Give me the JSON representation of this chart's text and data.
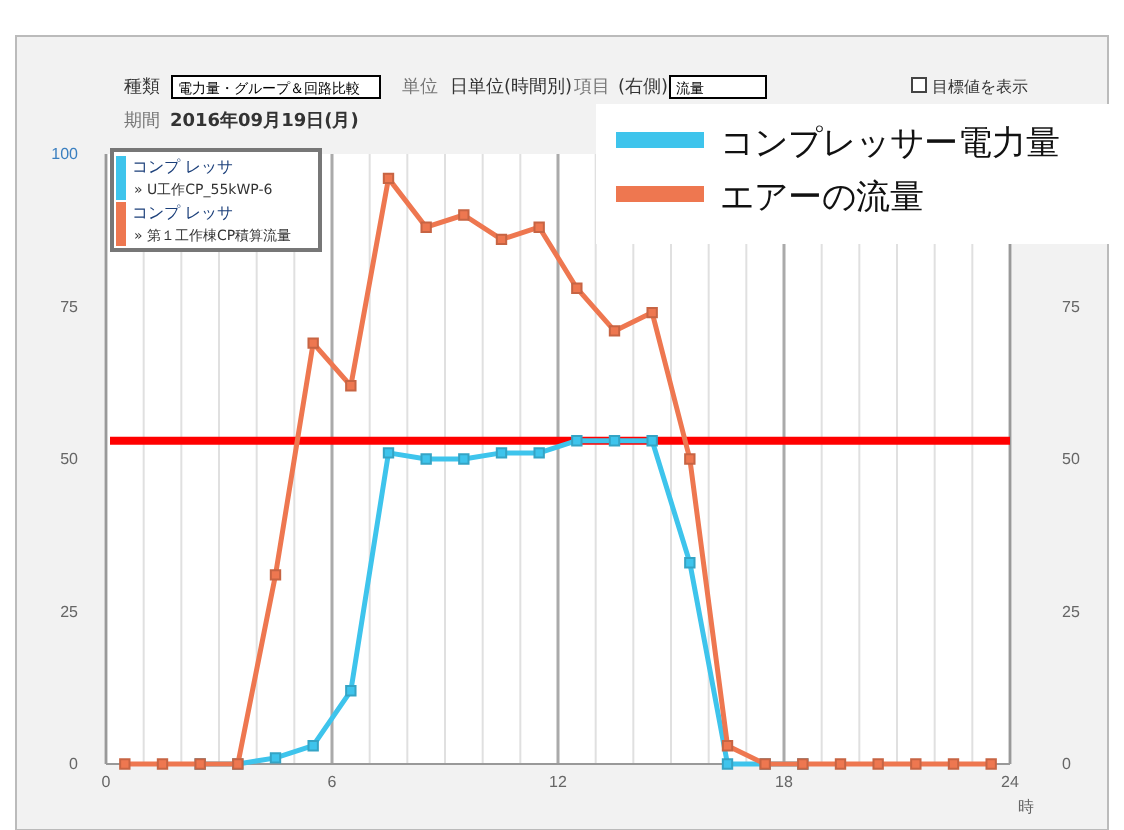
{
  "chart_data": {
    "type": "line",
    "x": [
      0.5,
      1.5,
      2.5,
      3.5,
      4.5,
      5.5,
      6.5,
      7.5,
      8.5,
      9.5,
      10.5,
      11.5,
      12.5,
      13.5,
      14.5,
      15.5,
      16.5,
      17.5,
      18.5,
      19.5,
      20.5,
      21.5,
      22.5,
      23.5
    ],
    "series": [
      {
        "name": "コンプレッサー電力量",
        "color": "#3ec4ec",
        "values": [
          null,
          null,
          0,
          0,
          1,
          3,
          12,
          51,
          50,
          50,
          51,
          51,
          53,
          53,
          53,
          33,
          0,
          0,
          0,
          null,
          null,
          null,
          null,
          null
        ]
      },
      {
        "name": "エアーの流量",
        "color": "#ee7750",
        "values": [
          0,
          0,
          0,
          0,
          31,
          69,
          62,
          96,
          88,
          90,
          86,
          88,
          78,
          71,
          74,
          50,
          3,
          0,
          0,
          0,
          0,
          0,
          0,
          0
        ]
      }
    ],
    "xlim": [
      0,
      24
    ],
    "xticks": [
      0,
      {
        "value": 1,
        "label": null
      },
      {
        "value": 2,
        "label": null
      },
      {
        "value": 3,
        "label": null
      },
      {
        "value": 4,
        "label": null
      },
      {
        "value": 5,
        "label": null
      },
      6,
      {
        "value": 7,
        "label": null
      },
      {
        "value": 8,
        "label": null
      },
      {
        "value": 9,
        "label": null
      },
      {
        "value": 10,
        "label": null
      },
      {
        "value": 11,
        "label": null
      },
      12,
      {
        "value": 13,
        "label": null
      },
      {
        "value": 14,
        "label": null
      },
      {
        "value": 15,
        "label": null
      },
      {
        "value": 16,
        "label": null
      },
      {
        "value": 17,
        "label": null
      },
      18,
      {
        "value": 19,
        "label": null
      },
      {
        "value": 20,
        "label": null
      },
      {
        "value": 21,
        "label": null
      },
      {
        "value": 22,
        "label": null
      },
      {
        "value": 23,
        "label": null
      },
      24
    ],
    "ylim": [
      0,
      100
    ],
    "yticks": [
      0,
      25,
      50,
      75,
      100
    ],
    "y2lim": [
      0,
      100
    ],
    "y2ticks": [
      0,
      25,
      50,
      75
    ],
    "xlabel": "時",
    "ref_lines": [
      {
        "axis": "y",
        "value": 53,
        "color": "#ff0000"
      }
    ],
    "grid": "x",
    "marker": "square",
    "line_style": "solid",
    "legend": "top right",
    "annotations": [
      "種類",
      "電力量・グループ＆回路比較",
      "単位",
      "日単位(時間別)",
      "項目",
      "(右側)",
      "流量",
      "目標値を表示",
      "期間",
      "2016年09月19日(月)",
      "コンプ レッサ",
      "» U工作CP_55kWP-6",
      "コンプ レッサ",
      "» 第１工作棟CP積算流量"
    ]
  }
}
